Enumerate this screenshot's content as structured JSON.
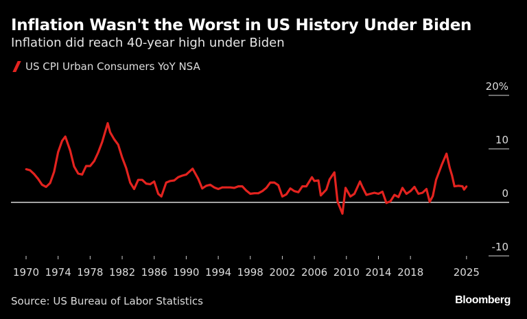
{
  "title": "Inflation Wasn't the Worst in US History Under Biden",
  "subtitle": "Inflation did reach 40-year high under Biden",
  "source": "Source: US Bureau of Labor Statistics",
  "logo": "Bloomberg",
  "chart_data": {
    "type": "line",
    "title": "Inflation Wasn't the Worst in US History Under Biden",
    "legend_position": "top-left",
    "grid": false,
    "ylim": [
      -10,
      20
    ],
    "xlim": [
      1970,
      2025
    ],
    "y_ticks": [
      {
        "value": 20,
        "label": "20%"
      },
      {
        "value": 10,
        "label": "10"
      },
      {
        "value": 0,
        "label": "0"
      },
      {
        "value": -10,
        "label": "-10"
      }
    ],
    "x_ticks": [
      {
        "value": 1970,
        "label": "1970"
      },
      {
        "value": 1974,
        "label": "1974"
      },
      {
        "value": 1978,
        "label": "1978"
      },
      {
        "value": 1982,
        "label": "1982"
      },
      {
        "value": 1986,
        "label": "1986"
      },
      {
        "value": 1990,
        "label": "1990"
      },
      {
        "value": 1994,
        "label": "1994"
      },
      {
        "value": 1998,
        "label": "1998"
      },
      {
        "value": 2002,
        "label": "2002"
      },
      {
        "value": 2006,
        "label": "2006"
      },
      {
        "value": 2010,
        "label": "2010"
      },
      {
        "value": 2014,
        "label": "2014"
      },
      {
        "value": 2018,
        "label": "2018"
      },
      {
        "value": 2025,
        "label": "2025"
      }
    ],
    "series": [
      {
        "name": "US CPI Urban Consumers YoY NSA",
        "color": "#e3231f",
        "x": [
          1970.0,
          1970.5,
          1971.0,
          1971.5,
          1972.0,
          1972.5,
          1973.0,
          1973.5,
          1974.0,
          1974.5,
          1974.9,
          1975.5,
          1976.0,
          1976.5,
          1977.0,
          1977.5,
          1978.0,
          1978.5,
          1979.0,
          1979.5,
          1980.2,
          1980.5,
          1981.0,
          1981.5,
          1982.0,
          1982.5,
          1983.0,
          1983.5,
          1984.0,
          1984.5,
          1985.0,
          1985.5,
          1986.0,
          1986.5,
          1986.9,
          1987.5,
          1988.0,
          1988.5,
          1989.0,
          1989.5,
          1990.0,
          1990.8,
          1991.5,
          1992.0,
          1992.5,
          1993.0,
          1993.5,
          1994.0,
          1994.5,
          1995.0,
          1995.5,
          1996.0,
          1996.5,
          1997.0,
          1997.5,
          1998.0,
          1998.5,
          1999.0,
          1999.5,
          2000.0,
          2000.5,
          2001.0,
          2001.5,
          2002.0,
          2002.5,
          2003.0,
          2003.5,
          2004.0,
          2004.5,
          2005.0,
          2005.7,
          2006.0,
          2006.5,
          2006.8,
          2007.5,
          2007.9,
          2008.5,
          2008.9,
          2009.5,
          2009.9,
          2010.5,
          2011.0,
          2011.7,
          2012.0,
          2012.5,
          2013.0,
          2013.5,
          2014.0,
          2014.5,
          2015.0,
          2015.5,
          2016.0,
          2016.5,
          2017.0,
          2017.5,
          2018.0,
          2018.5,
          2019.0,
          2019.5,
          2020.0,
          2020.4,
          2020.8,
          2021.2,
          2021.5,
          2021.9,
          2022.5,
          2022.9,
          2023.2,
          2023.5,
          2024.0,
          2024.5,
          2024.7,
          2025.0
        ],
        "values": [
          6.2,
          6.0,
          5.3,
          4.4,
          3.3,
          2.9,
          3.6,
          5.7,
          9.4,
          11.5,
          12.3,
          9.7,
          6.7,
          5.4,
          5.2,
          6.8,
          6.8,
          7.7,
          9.3,
          11.3,
          14.8,
          13.1,
          11.8,
          10.8,
          8.4,
          6.4,
          3.7,
          2.5,
          4.2,
          4.2,
          3.5,
          3.4,
          3.9,
          1.6,
          1.1,
          3.7,
          4.0,
          4.1,
          4.7,
          5.0,
          5.2,
          6.3,
          4.4,
          2.6,
          3.1,
          3.3,
          2.8,
          2.5,
          2.8,
          2.8,
          2.8,
          2.7,
          3.0,
          3.0,
          2.2,
          1.6,
          1.7,
          1.7,
          2.1,
          2.7,
          3.7,
          3.7,
          3.2,
          1.1,
          1.5,
          2.6,
          2.1,
          1.9,
          3.0,
          3.0,
          4.7,
          4.0,
          4.1,
          1.3,
          2.4,
          4.3,
          5.6,
          0.1,
          -2.1,
          2.7,
          1.1,
          1.6,
          3.9,
          2.9,
          1.4,
          1.6,
          1.8,
          1.6,
          2.0,
          -0.1,
          0.2,
          1.4,
          1.0,
          2.7,
          1.6,
          2.1,
          2.9,
          1.6,
          1.8,
          2.5,
          0.1,
          1.2,
          4.2,
          5.4,
          7.0,
          9.1,
          6.5,
          5.0,
          3.0,
          3.1,
          3.0,
          2.4,
          3.0
        ]
      }
    ]
  }
}
